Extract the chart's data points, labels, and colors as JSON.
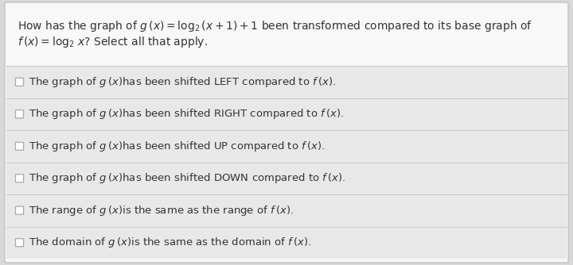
{
  "background_color": "#d8d8d8",
  "panel_color": "#f8f8f8",
  "header_bg": "#f8f8f8",
  "title_line1": "How has the graph of $g\\,(x) = \\log_2(x+1)+1$ been transformed compared to its base graph of",
  "title_line2": "$f\\,(x) = \\log_2\\,x$? Select all that apply.",
  "options": [
    "The graph of $g\\,(x)$has been shifted LEFT compared to $f\\,(x)$.",
    "The graph of $g\\,(x)$has been shifted RIGHT compared to $f\\,(x)$.",
    "The graph of $g\\,(x)$has been shifted UP compared to $f\\,(x)$.",
    "The graph of $g\\,(x)$has been shifted DOWN compared to $f\\,(x)$.",
    "The range of $g\\,(x)$is the same as the range of $f\\,(x)$.",
    "The domain of $g\\,(x)$is the same as the domain of $f\\,(x)$."
  ],
  "text_color": "#333333",
  "option_bg": "#e8e8e8",
  "divider_color": "#c8c8c8",
  "checkbox_edge_color": "#aaaaaa",
  "title_fontsize": 10.0,
  "option_fontsize": 9.5,
  "panel_edge_color": "#bbbbbb"
}
